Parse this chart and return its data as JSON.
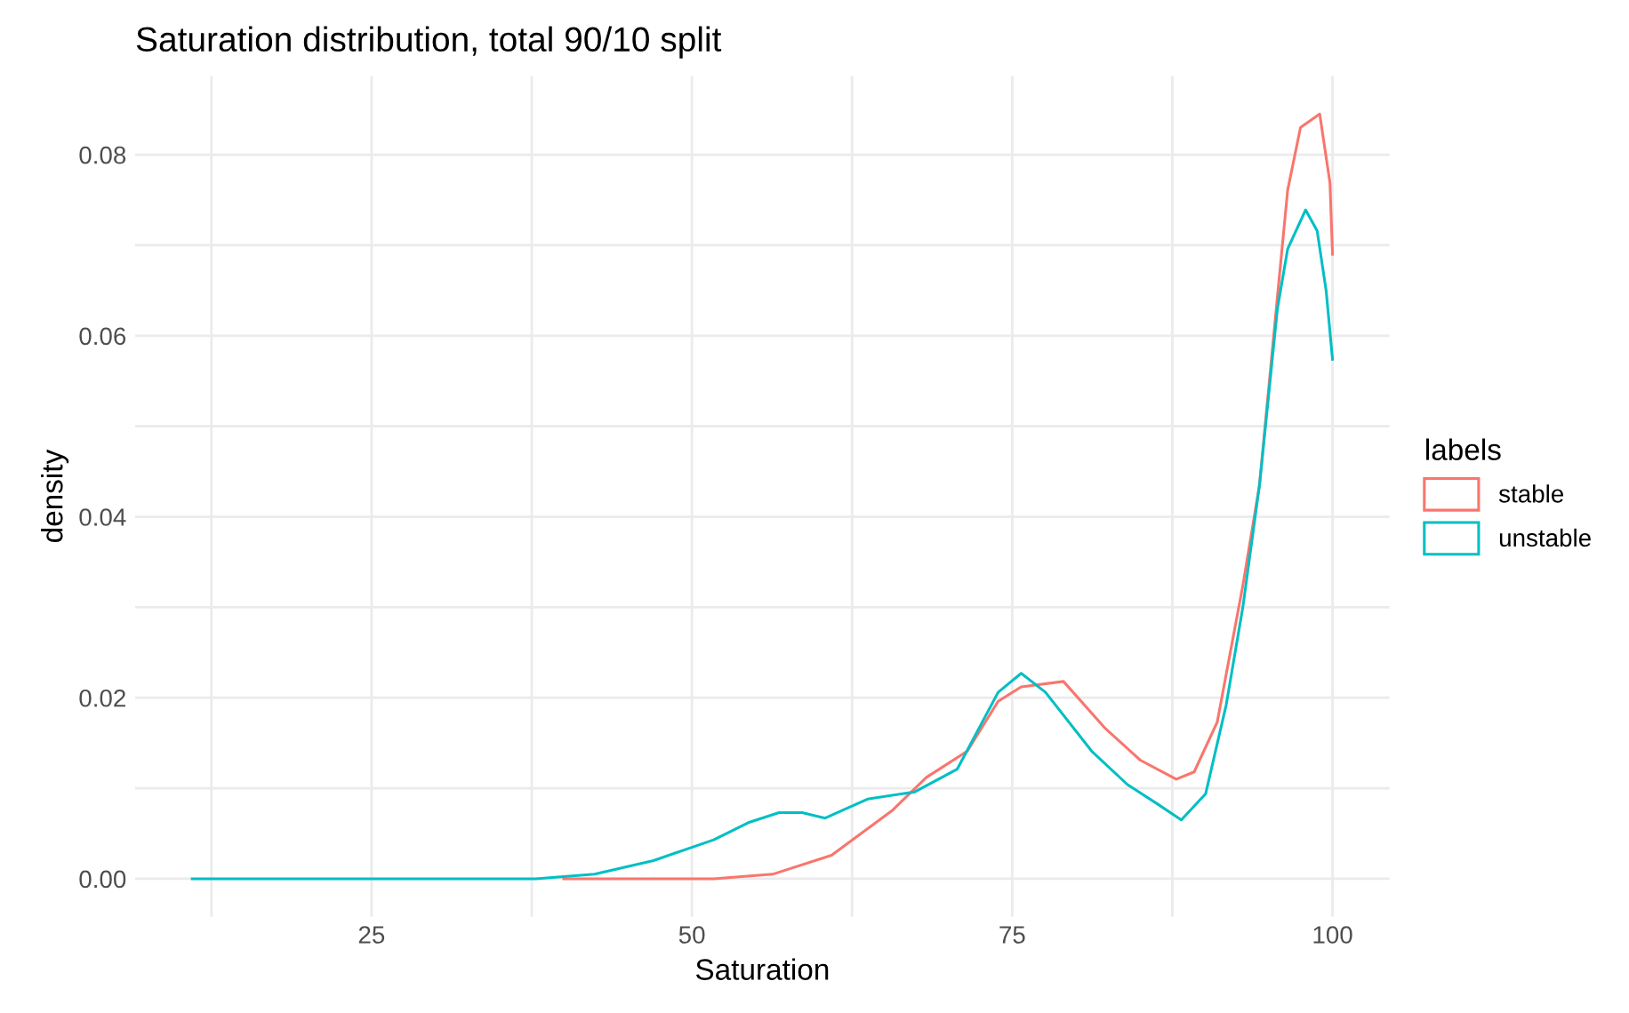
{
  "chart_data": {
    "type": "line",
    "title": "Saturation distribution, total 90/10 split",
    "xlabel": "Saturation",
    "ylabel": "density",
    "legend_title": "labels",
    "legend": "right",
    "grid": true,
    "xlim": [
      6.55,
      104.45
    ],
    "ylim": [
      -0.0042,
      0.0887
    ],
    "xticks": [
      {
        "value": 12.5,
        "label": null
      },
      25,
      {
        "value": 37.5,
        "label": null
      },
      50,
      {
        "value": 62.5,
        "label": null
      },
      75,
      {
        "value": 87.5,
        "label": null
      },
      100
    ],
    "yticks": [
      {
        "value": 0,
        "label": "0.00"
      },
      {
        "value": 0.01,
        "label": null
      },
      {
        "value": 0.02,
        "label": "0.02"
      },
      {
        "value": 0.03,
        "label": null
      },
      {
        "value": 0.04,
        "label": "0.04"
      },
      {
        "value": 0.05,
        "label": null
      },
      {
        "value": 0.06,
        "label": "0.06"
      },
      {
        "value": 0.07,
        "label": null
      },
      {
        "value": 0.08,
        "label": "0.08"
      }
    ],
    "series": [
      {
        "name": "stable",
        "color": "#f8766d",
        "x": [
          40,
          46,
          51.7,
          56.3,
          60.9,
          65.6,
          68.3,
          71.5,
          73.9,
          75.7,
          79,
          82.2,
          85,
          87.8,
          89.2,
          91,
          93,
          94.3,
          95.7,
          96.5,
          97.5,
          99,
          99.8,
          100
        ],
        "values": [
          0,
          0,
          0,
          0.0005,
          0.0026,
          0.0075,
          0.0112,
          0.0141,
          0.0196,
          0.0212,
          0.0218,
          0.0167,
          0.0131,
          0.011,
          0.0118,
          0.0173,
          0.0324,
          0.0435,
          0.0643,
          0.0761,
          0.083,
          0.0845,
          0.0769,
          0.069
        ]
      },
      {
        "name": "unstable",
        "color": "#00bfc4",
        "x": [
          11,
          20,
          30,
          37.8,
          42.4,
          47,
          51.7,
          54.4,
          56.8,
          58.6,
          60.4,
          63.7,
          67.4,
          70.7,
          73.9,
          75.7,
          77.6,
          81.2,
          84,
          86.4,
          88.2,
          90.1,
          91.7,
          93,
          94.3,
          95.7,
          96.5,
          97.9,
          98.8,
          99.5,
          100
        ],
        "values": [
          0,
          0,
          0,
          0,
          0.0005,
          0.002,
          0.0043,
          0.0062,
          0.0073,
          0.0073,
          0.0067,
          0.0088,
          0.0096,
          0.0121,
          0.0206,
          0.0227,
          0.0206,
          0.0141,
          0.0104,
          0.0082,
          0.0065,
          0.0094,
          0.0192,
          0.03,
          0.0435,
          0.063,
          0.0696,
          0.0739,
          0.0716,
          0.065,
          0.0574
        ]
      }
    ]
  }
}
